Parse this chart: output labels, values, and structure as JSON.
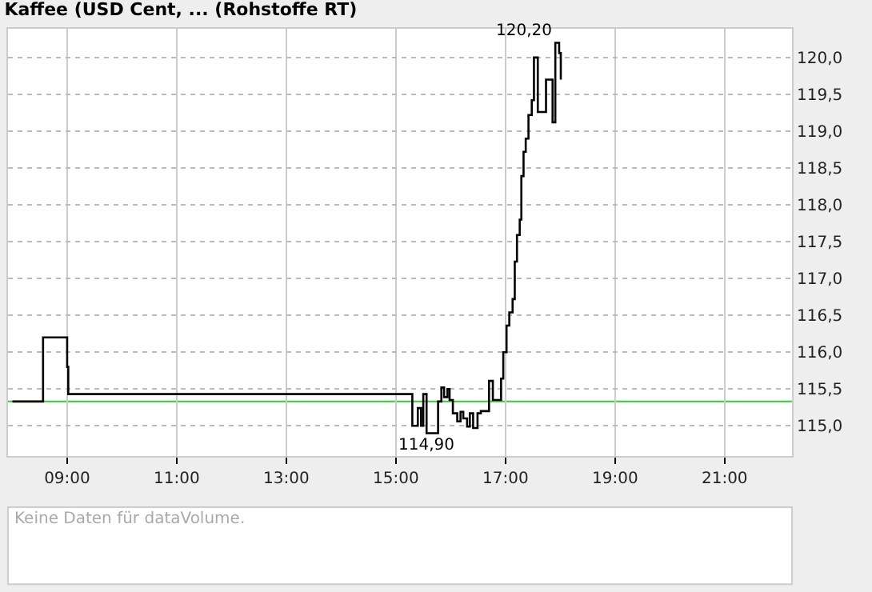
{
  "chart_data": {
    "type": "step",
    "title": "Kaffee (USD Cent, ... (Rohstoffe RT)",
    "x": [
      8.0,
      8.56,
      9.0,
      9.02,
      15.3,
      15.4,
      15.46,
      15.5,
      15.56,
      15.71,
      15.77,
      15.83,
      15.88,
      15.94,
      15.98,
      16.04,
      16.12,
      16.18,
      16.23,
      16.3,
      16.35,
      16.41,
      16.49,
      16.55,
      16.7,
      16.77,
      16.92,
      16.96,
      17.02,
      17.07,
      17.13,
      17.17,
      17.21,
      17.26,
      17.29,
      17.33,
      17.37,
      17.42,
      17.48,
      17.52,
      17.59,
      17.74,
      17.84,
      17.86,
      17.91,
      17.98,
      18.01
    ],
    "series": [
      {
        "color": "#000000",
        "values": [
          115.33,
          116.2,
          115.8,
          115.43,
          115.0,
          115.24,
          115.0,
          115.43,
          114.9,
          114.9,
          115.33,
          115.52,
          115.39,
          115.5,
          115.35,
          115.17,
          115.06,
          115.19,
          115.1,
          114.99,
          115.17,
          114.97,
          115.17,
          115.2,
          115.61,
          115.35,
          115.64,
          116.0,
          116.36,
          116.54,
          116.72,
          117.23,
          117.59,
          117.8,
          118.39,
          118.72,
          118.9,
          119.22,
          119.42,
          120.0,
          119.26,
          119.7,
          119.7,
          119.12,
          120.2,
          120.06,
          119.7
        ]
      }
    ],
    "xlim": [
      7.92,
      22.23
    ],
    "xticks": [
      {
        "value": 9,
        "label": "09:00"
      },
      {
        "value": 11,
        "label": "11:00"
      },
      {
        "value": 13,
        "label": "13:00"
      },
      {
        "value": 15,
        "label": "15:00"
      },
      {
        "value": 17,
        "label": "17:00"
      },
      {
        "value": 19,
        "label": "19:00"
      },
      {
        "value": 21,
        "label": "21:00"
      }
    ],
    "ylim": [
      114.59,
      120.39
    ],
    "yticks": [
      {
        "value": 115.0,
        "label": "115,0"
      },
      {
        "value": 115.5,
        "label": "115,5"
      },
      {
        "value": 116.0,
        "label": "116,0"
      },
      {
        "value": 116.5,
        "label": "116,5"
      },
      {
        "value": 117.0,
        "label": "117,0"
      },
      {
        "value": 117.5,
        "label": "117,5"
      },
      {
        "value": 118.0,
        "label": "118,0"
      },
      {
        "value": 118.5,
        "label": "118,5"
      },
      {
        "value": 119.0,
        "label": "119,0"
      },
      {
        "value": 119.5,
        "label": "119,5"
      },
      {
        "value": 120.0,
        "label": "120,0"
      }
    ],
    "ref_lines": [
      {
        "axis": "y",
        "value": 115.33,
        "color": "#33cc33"
      }
    ],
    "annotations": [
      {
        "text": "120,20",
        "x": 17.91,
        "y": 120.2
      },
      {
        "text": "114,90",
        "x": 15.56,
        "y": 114.9
      },
      "Keine Daten für dataVolume."
    ],
    "grid": true
  }
}
